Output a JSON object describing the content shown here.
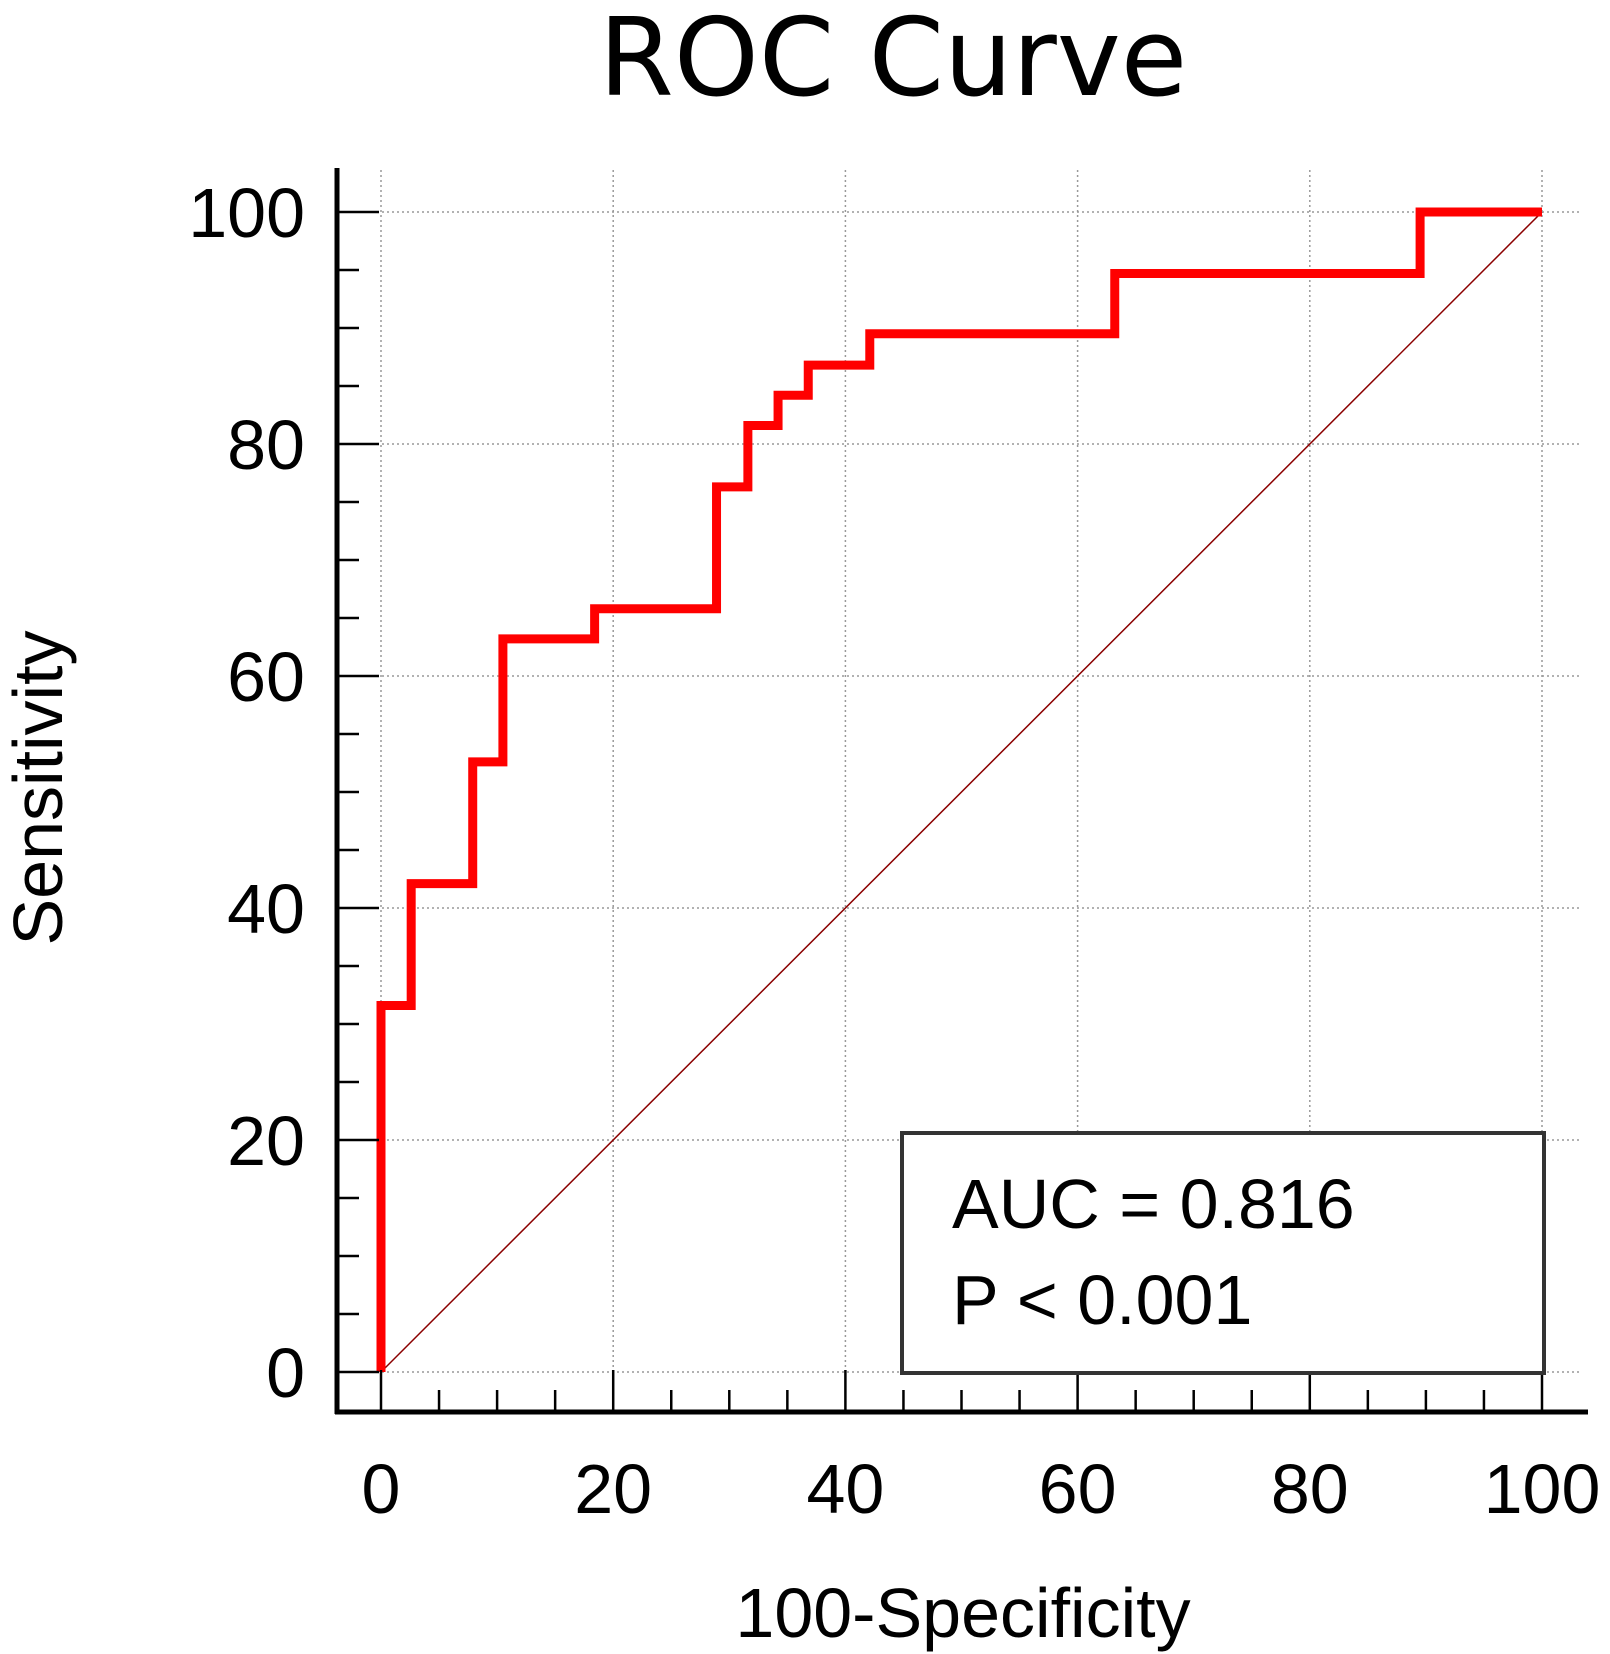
{
  "chart_data": {
    "type": "line",
    "title": "ROC Curve",
    "xlabel": "100-Specificity",
    "ylabel": "Sensitivity",
    "xlim": [
      0,
      100
    ],
    "ylim": [
      0,
      100
    ],
    "grid": true,
    "x_ticks": [
      0,
      20,
      40,
      60,
      80,
      100
    ],
    "y_ticks": [
      0,
      20,
      40,
      60,
      80,
      100
    ],
    "x_tick_labels": [
      "0",
      "20",
      "40",
      "60",
      "80",
      "100"
    ],
    "y_tick_labels": [
      "0",
      "20",
      "40",
      "60",
      "80",
      "100"
    ],
    "series": [
      {
        "name": "ROC",
        "color": "#ff0000",
        "x": [
          0,
          0,
          2.6,
          2.6,
          7.9,
          7.9,
          10.5,
          10.5,
          18.4,
          18.4,
          28.9,
          28.9,
          31.6,
          31.6,
          34.2,
          34.2,
          36.8,
          36.8,
          42.1,
          42.1,
          63.2,
          63.2,
          89.5,
          89.5,
          100
        ],
        "y": [
          0,
          31.6,
          31.6,
          42.1,
          42.1,
          52.6,
          52.6,
          63.2,
          63.2,
          65.8,
          65.8,
          76.3,
          76.3,
          81.6,
          81.6,
          84.2,
          84.2,
          86.8,
          86.8,
          89.5,
          89.5,
          94.7,
          94.7,
          100,
          100
        ]
      },
      {
        "name": "reference",
        "color": "#8b0000",
        "x": [
          0,
          100
        ],
        "y": [
          0,
          100
        ]
      }
    ],
    "annotations": {
      "auc_text": "AUC = 0.816",
      "p_text": "P < 0.001",
      "placement": "bottom-right"
    }
  }
}
